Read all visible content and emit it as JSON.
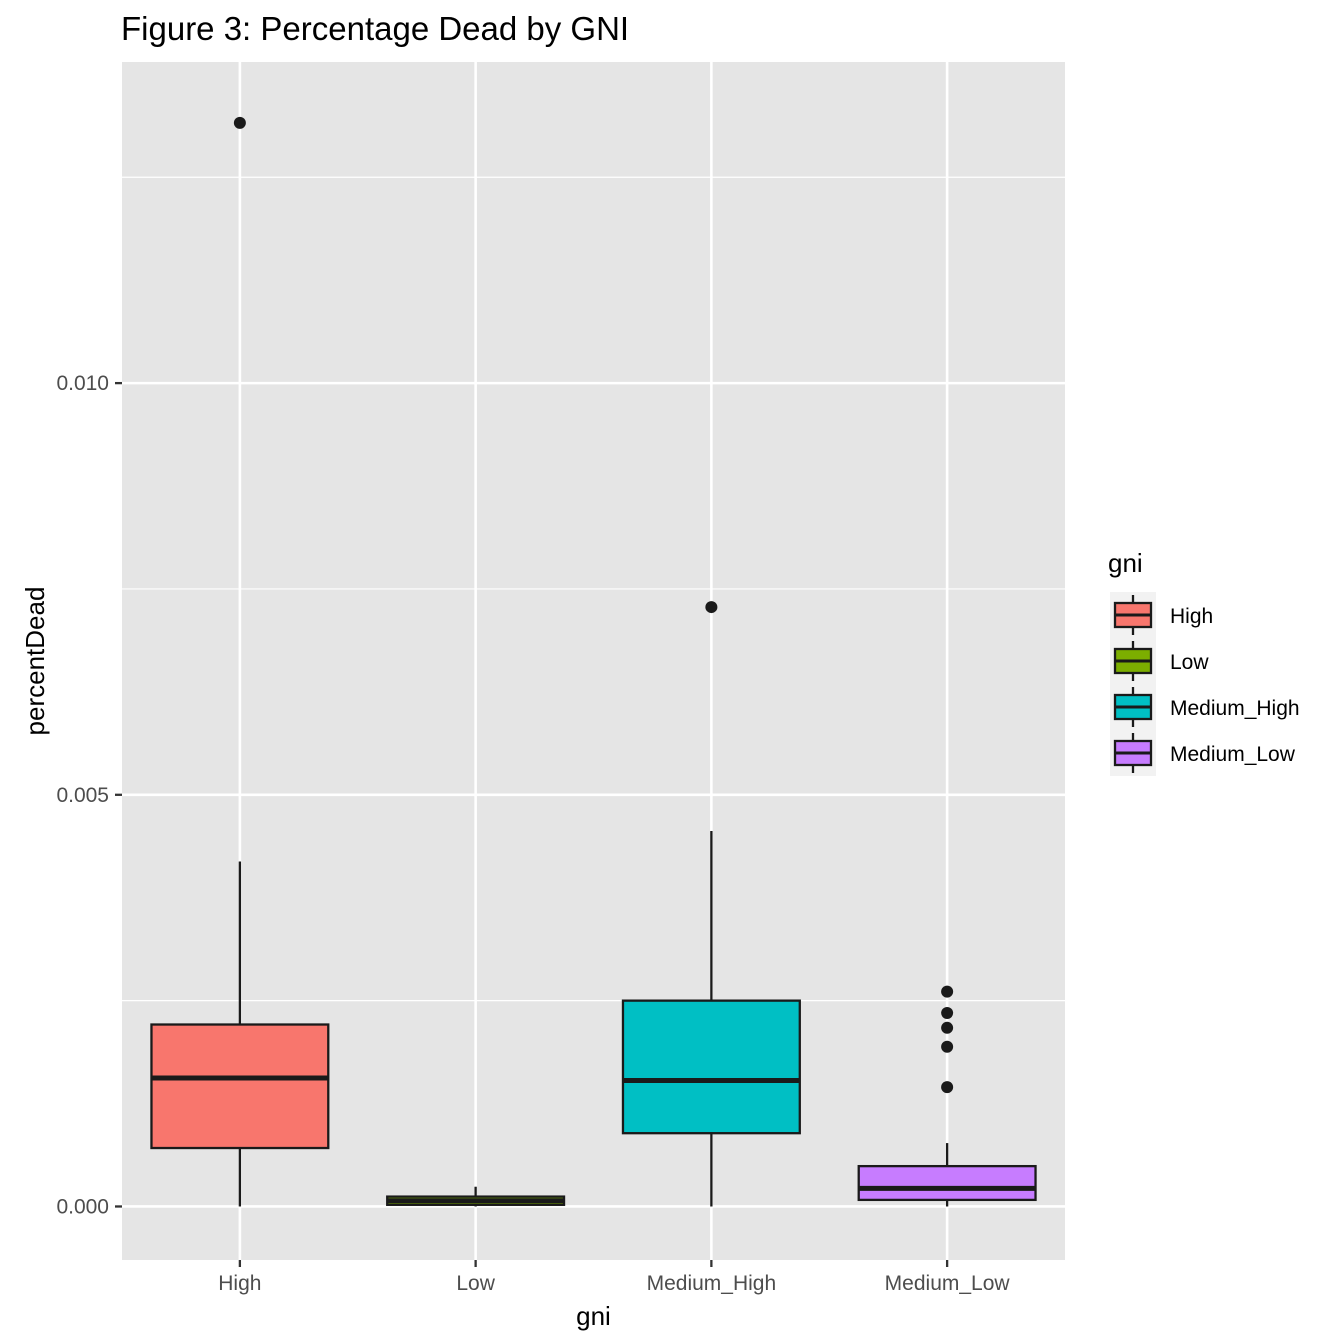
{
  "chart_data": {
    "type": "boxplot",
    "title": "Figure 3: Percentage Dead by GNI",
    "xlabel": "gni",
    "ylabel": "percentDead",
    "ylim": [
      -0.00065,
      0.0139
    ],
    "yticks": [
      0.0,
      0.005,
      0.01
    ],
    "ytick_labels": [
      "0.000",
      "0.005",
      "0.010"
    ],
    "ygrid_minor": [
      0.0025,
      0.0075,
      0.0125
    ],
    "grid": true,
    "legend_title": "gni",
    "legend_position": "right",
    "categories": [
      "High",
      "Low",
      "Medium_High",
      "Medium_Low"
    ],
    "boxes": [
      {
        "name": "High",
        "color": "#F8766D",
        "whisker_low": 0.0,
        "q1": 0.00071,
        "median": 0.00156,
        "q3": 0.00221,
        "whisker_high": 0.00419,
        "outliers": [
          0.01316
        ]
      },
      {
        "name": "Low",
        "color": "#7CAE00",
        "whisker_low": 0.0,
        "q1": 2e-05,
        "median": 7e-05,
        "q3": 0.00012,
        "whisker_high": 0.00024,
        "outliers": []
      },
      {
        "name": "Medium_High",
        "color": "#00BFC4",
        "whisker_low": 0.0,
        "q1": 0.00089,
        "median": 0.00153,
        "q3": 0.0025,
        "whisker_high": 0.00456,
        "outliers": [
          0.00728
        ]
      },
      {
        "name": "Medium_Low",
        "color": "#C77CFF",
        "whisker_low": 0.0,
        "q1": 8e-05,
        "median": 0.00022,
        "q3": 0.00049,
        "whisker_high": 0.00077,
        "outliers": [
          0.00145,
          0.00194,
          0.00217,
          0.00235,
          0.00261
        ]
      }
    ]
  }
}
